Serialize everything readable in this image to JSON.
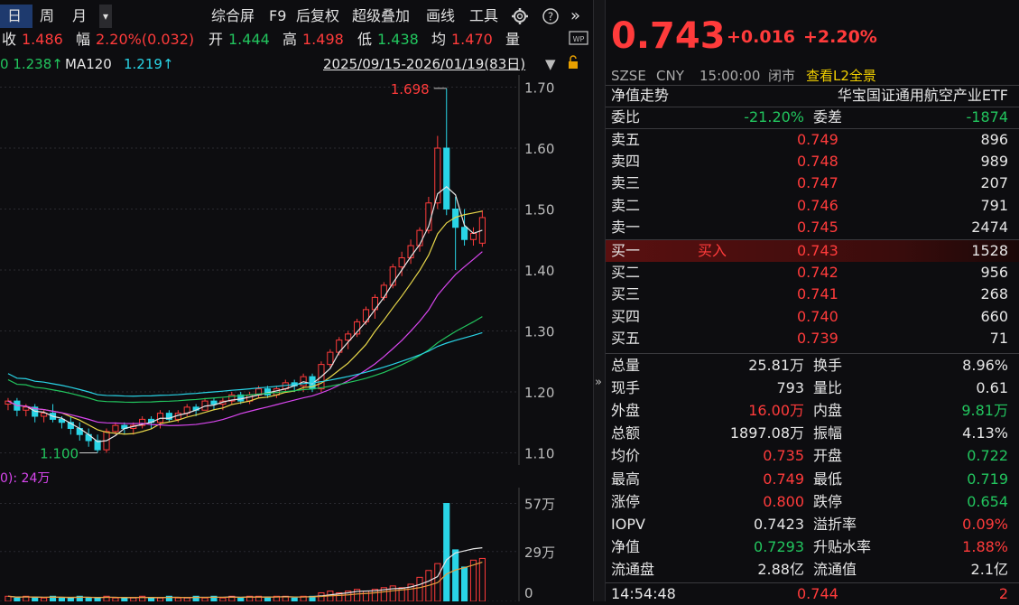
{
  "toolbar": {
    "period_day": "日",
    "period_week": "周",
    "period_month": "月",
    "dropdown": "▾",
    "overview": "综合屏",
    "f9": "F9",
    "adjust": "后复权",
    "overlay": "超级叠加",
    "drawing": "画线",
    "tools": "工具",
    "more": "»"
  },
  "info": {
    "close_label": "收",
    "close_value": "1.486",
    "amp_label": "幅",
    "amp_value": "2.20%(0.032)",
    "open_label": "开",
    "open_value": "1.444",
    "high_label": "高",
    "high_value": "1.498",
    "low_label": "低",
    "low_value": "1.438",
    "avg_label": "均",
    "avg_value": "1.470",
    "vol_label": "量"
  },
  "ma_line": {
    "ma60_value": "0 1.238↑",
    "ma120_label": "MA120",
    "ma120_value": "1.219↑",
    "range": "2025/09/15-2026/01/19(83日)",
    "range_arrow": "▼"
  },
  "chart": {
    "y_ticks": [
      "1.70",
      "1.60",
      "1.50",
      "1.40",
      "1.30",
      "1.20",
      "1.10"
    ],
    "high_marker": "1.698",
    "low_marker": "1.100",
    "vol_label": "0): 24万",
    "vol_ticks": [
      "57万",
      "29万",
      "0"
    ]
  },
  "quote": {
    "price": "0.743",
    "change": "+0.016",
    "change_pct": "+2.20%",
    "exchange": "SZSE",
    "currency": "CNY",
    "time": "15:00:00",
    "status": "闭市",
    "l2_link": "查看L2全景",
    "nav_title": "净值走势",
    "fund_name": "华宝国证通用航空产业ETF"
  },
  "order_book": {
    "weibi_label": "委比",
    "weibi_value": "-21.20%",
    "weicha_label": "委差",
    "weicha_value": "-1874",
    "asks": [
      {
        "label": "卖五",
        "price": "0.749",
        "vol": "896"
      },
      {
        "label": "卖四",
        "price": "0.748",
        "vol": "989"
      },
      {
        "label": "卖三",
        "price": "0.747",
        "vol": "207"
      },
      {
        "label": "卖二",
        "price": "0.746",
        "vol": "791"
      },
      {
        "label": "卖一",
        "price": "0.745",
        "vol": "2474"
      }
    ],
    "bids": [
      {
        "label": "买一",
        "price": "0.743",
        "vol": "1528"
      },
      {
        "label": "买二",
        "price": "0.742",
        "vol": "956"
      },
      {
        "label": "买三",
        "price": "0.741",
        "vol": "268"
      },
      {
        "label": "买四",
        "price": "0.740",
        "vol": "660"
      },
      {
        "label": "买五",
        "price": "0.739",
        "vol": "71"
      }
    ],
    "buy_button": "买入"
  },
  "stats": [
    {
      "l1": "总量",
      "v1": "25.81万",
      "c1": "white",
      "l2": "换手",
      "v2": "8.96%",
      "c2": "white"
    },
    {
      "l1": "现手",
      "v1": "793",
      "c1": "white",
      "l2": "量比",
      "v2": "0.61",
      "c2": "white"
    },
    {
      "l1": "外盘",
      "v1": "16.00万",
      "c1": "red",
      "l2": "内盘",
      "v2": "9.81万",
      "c2": "green"
    },
    {
      "l1": "总额",
      "v1": "1897.08万",
      "c1": "white",
      "l2": "振幅",
      "v2": "4.13%",
      "c2": "white"
    },
    {
      "l1": "均价",
      "v1": "0.735",
      "c1": "red",
      "l2": "开盘",
      "v2": "0.722",
      "c2": "green"
    },
    {
      "l1": "最高",
      "v1": "0.749",
      "c1": "red",
      "l2": "最低",
      "v2": "0.719",
      "c2": "green"
    },
    {
      "l1": "涨停",
      "v1": "0.800",
      "c1": "red",
      "l2": "跌停",
      "v2": "0.654",
      "c2": "green"
    },
    {
      "l1": "IOPV",
      "v1": "0.7423",
      "c1": "white",
      "l2": "溢折率",
      "v2": "0.09%",
      "c2": "red"
    },
    {
      "l1": "净值",
      "v1": "0.7293",
      "c1": "green",
      "l2": "升贴水率",
      "v2": "1.88%",
      "c2": "red"
    },
    {
      "l1": "流通盘",
      "v1": "2.88亿",
      "c1": "white",
      "l2": "流通值",
      "v2": "2.1亿",
      "c2": "white"
    }
  ],
  "tick": {
    "time": "14:54:48",
    "price": "0.744",
    "vol": "2"
  },
  "chart_data": {
    "type": "candlestick",
    "y_range": [
      1.08,
      1.72
    ],
    "candles": [
      [
        1.18,
        1.19,
        1.17,
        1.185
      ],
      [
        1.185,
        1.19,
        1.16,
        1.17
      ],
      [
        1.17,
        1.18,
        1.16,
        1.175
      ],
      [
        1.175,
        1.18,
        1.15,
        1.16
      ],
      [
        1.16,
        1.17,
        1.15,
        1.165
      ],
      [
        1.165,
        1.18,
        1.15,
        1.155
      ],
      [
        1.155,
        1.16,
        1.14,
        1.15
      ],
      [
        1.15,
        1.16,
        1.13,
        1.14
      ],
      [
        1.14,
        1.15,
        1.12,
        1.13
      ],
      [
        1.13,
        1.14,
        1.11,
        1.12
      ],
      [
        1.12,
        1.13,
        1.1,
        1.105
      ],
      [
        1.105,
        1.14,
        1.1,
        1.135
      ],
      [
        1.135,
        1.15,
        1.13,
        1.145
      ],
      [
        1.145,
        1.15,
        1.13,
        1.14
      ],
      [
        1.14,
        1.15,
        1.13,
        1.145
      ],
      [
        1.145,
        1.16,
        1.14,
        1.155
      ],
      [
        1.155,
        1.16,
        1.14,
        1.15
      ],
      [
        1.15,
        1.17,
        1.14,
        1.165
      ],
      [
        1.165,
        1.17,
        1.15,
        1.155
      ],
      [
        1.155,
        1.17,
        1.15,
        1.165
      ],
      [
        1.165,
        1.18,
        1.16,
        1.175
      ],
      [
        1.175,
        1.18,
        1.16,
        1.17
      ],
      [
        1.17,
        1.19,
        1.17,
        1.185
      ],
      [
        1.185,
        1.19,
        1.17,
        1.18
      ],
      [
        1.18,
        1.19,
        1.17,
        1.185
      ],
      [
        1.185,
        1.2,
        1.18,
        1.195
      ],
      [
        1.195,
        1.2,
        1.18,
        1.185
      ],
      [
        1.185,
        1.2,
        1.18,
        1.195
      ],
      [
        1.195,
        1.21,
        1.19,
        1.205
      ],
      [
        1.205,
        1.21,
        1.19,
        1.195
      ],
      [
        1.195,
        1.21,
        1.19,
        1.205
      ],
      [
        1.205,
        1.22,
        1.2,
        1.215
      ],
      [
        1.215,
        1.22,
        1.2,
        1.21
      ],
      [
        1.21,
        1.23,
        1.2,
        1.225
      ],
      [
        1.225,
        1.23,
        1.2,
        1.205
      ],
      [
        1.205,
        1.25,
        1.2,
        1.245
      ],
      [
        1.245,
        1.27,
        1.24,
        1.265
      ],
      [
        1.265,
        1.29,
        1.26,
        1.285
      ],
      [
        1.285,
        1.3,
        1.27,
        1.295
      ],
      [
        1.295,
        1.32,
        1.29,
        1.315
      ],
      [
        1.315,
        1.34,
        1.31,
        1.335
      ],
      [
        1.335,
        1.36,
        1.32,
        1.355
      ],
      [
        1.355,
        1.38,
        1.35,
        1.375
      ],
      [
        1.375,
        1.41,
        1.37,
        1.405
      ],
      [
        1.405,
        1.43,
        1.39,
        1.42
      ],
      [
        1.42,
        1.45,
        1.41,
        1.44
      ],
      [
        1.44,
        1.47,
        1.43,
        1.465
      ],
      [
        1.465,
        1.52,
        1.46,
        1.51
      ],
      [
        1.51,
        1.62,
        1.5,
        1.6
      ],
      [
        1.6,
        1.698,
        1.49,
        1.5
      ],
      [
        1.5,
        1.52,
        1.4,
        1.47
      ],
      [
        1.47,
        1.5,
        1.44,
        1.45
      ],
      [
        1.45,
        1.47,
        1.44,
        1.46
      ],
      [
        1.444,
        1.498,
        1.438,
        1.486
      ]
    ],
    "volumes": [
      3,
      2,
      3,
      2,
      2,
      3,
      2,
      2,
      3,
      2,
      2,
      3,
      2,
      2,
      2,
      3,
      2,
      2,
      3,
      2,
      2,
      3,
      2,
      3,
      2,
      3,
      2,
      3,
      3,
      2,
      3,
      3,
      2,
      3,
      3,
      5,
      6,
      5,
      6,
      7,
      6,
      7,
      8,
      9,
      8,
      10,
      14,
      18,
      22,
      57,
      30,
      20,
      24,
      25
    ]
  }
}
